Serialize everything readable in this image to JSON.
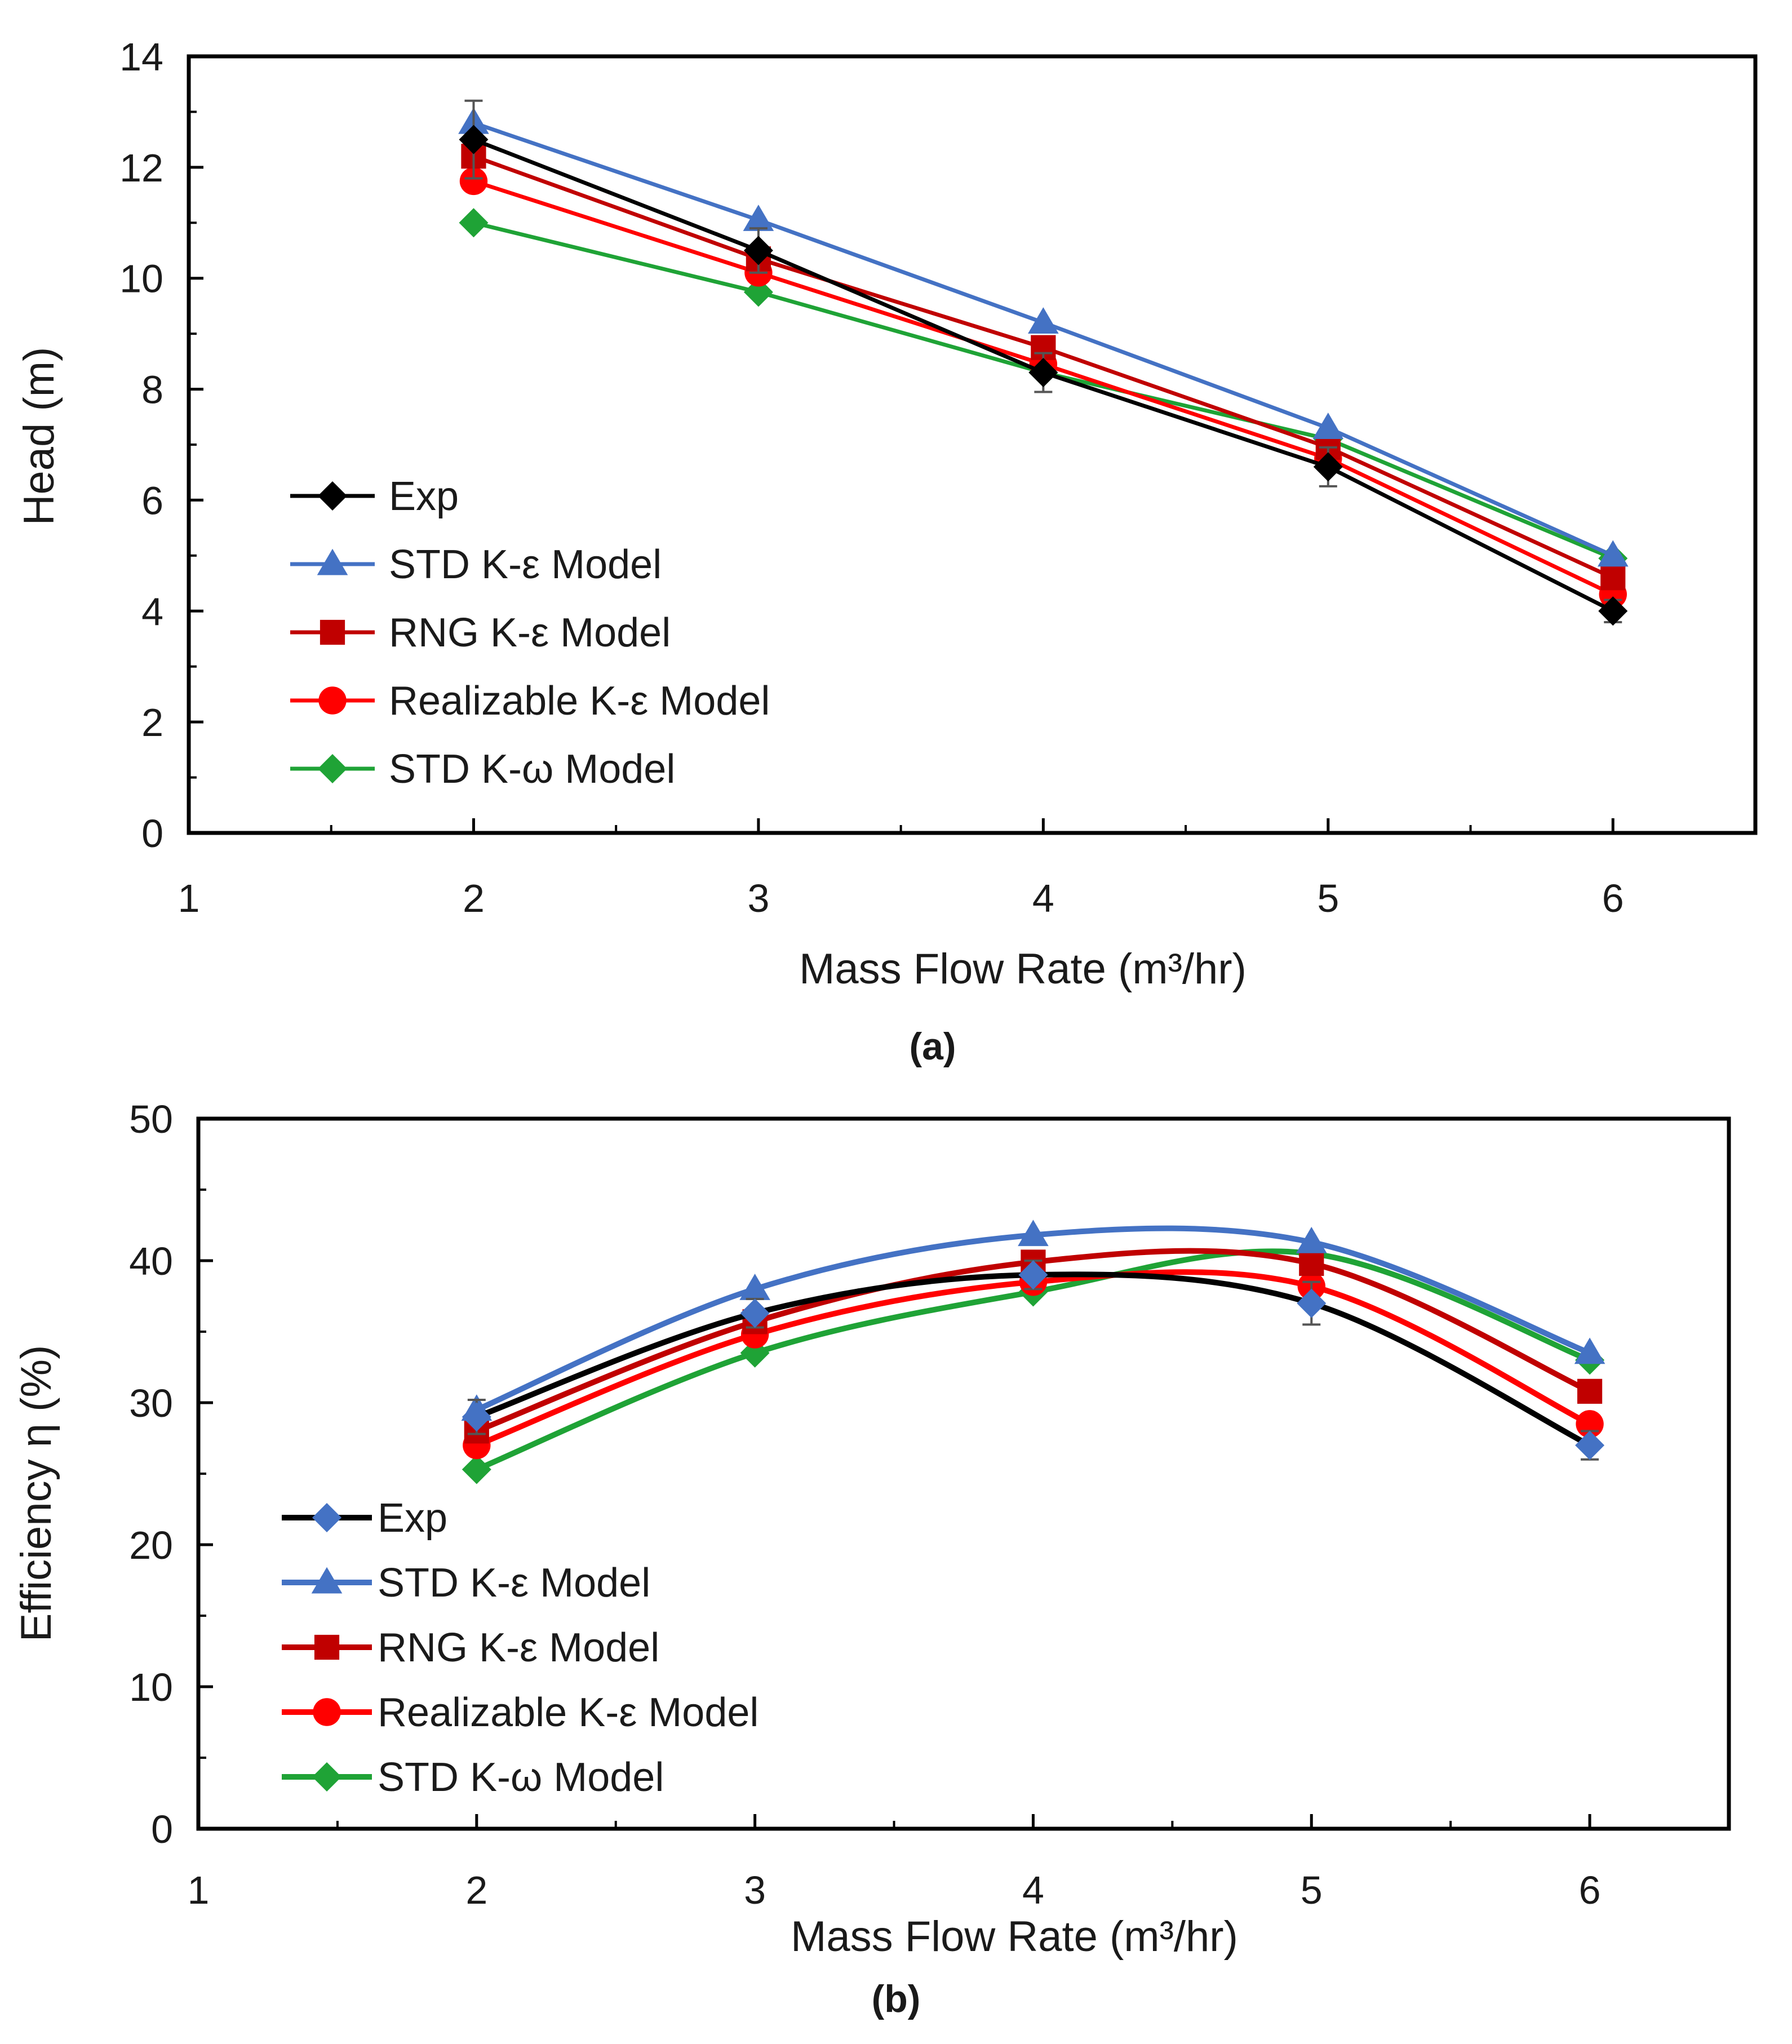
{
  "chart_data": [
    {
      "type": "line",
      "panel_label": "(a)",
      "xlabel": "Mass Flow Rate (m³/hr)",
      "ylabel": "Head (m)",
      "xlim": [
        1,
        6.5
      ],
      "ylim": [
        0,
        14
      ],
      "x_ticks": [
        "1",
        "2",
        "3",
        "4",
        "5",
        "6"
      ],
      "y_ticks": [
        "0",
        "2",
        "4",
        "6",
        "8",
        "10",
        "12",
        "14"
      ],
      "legend_position": "left",
      "x": [
        2,
        3,
        4,
        5,
        6
      ],
      "series": [
        {
          "name": "Exp",
          "color": "#000000",
          "marker": "diamond",
          "values": [
            12.5,
            10.5,
            8.3,
            6.6,
            4.0
          ],
          "error": [
            0.7,
            0.4,
            0.35,
            0.35,
            0.2
          ]
        },
        {
          "name": "STD K-ε Model",
          "color": "#4472C4",
          "marker": "triangle",
          "values": [
            12.8,
            11.05,
            9.2,
            7.3,
            5.0
          ]
        },
        {
          "name": "RNG K-ε Model",
          "color": "#C00000",
          "marker": "square",
          "values": [
            12.2,
            10.35,
            8.75,
            6.95,
            4.6
          ]
        },
        {
          "name": "Realizable K-ε Model",
          "color": "#FF0000",
          "marker": "circle",
          "values": [
            11.75,
            10.1,
            8.45,
            6.75,
            4.3
          ]
        },
        {
          "name": "STD K-ω Model",
          "color": "#1FA336",
          "marker": "diamond",
          "values": [
            11.0,
            9.75,
            8.3,
            7.1,
            4.95
          ]
        }
      ]
    },
    {
      "type": "line",
      "panel_label": "(b)",
      "xlabel": "Mass Flow Rate (m³/hr)",
      "ylabel": "Efficiency η (%)",
      "xlim": [
        1,
        6.5
      ],
      "ylim": [
        0,
        50
      ],
      "x_ticks": [
        "1",
        "2",
        "3",
        "4",
        "5",
        "6"
      ],
      "y_ticks": [
        "0",
        "10",
        "20",
        "30",
        "40",
        "50"
      ],
      "legend_position": "left",
      "x": [
        2,
        3,
        4,
        5,
        6
      ],
      "series": [
        {
          "name": "Exp",
          "color": "#000000",
          "marker": "diamond",
          "marker_color": "#4472C4",
          "values": [
            29.0,
            36.3,
            39.0,
            37.0,
            27.0
          ],
          "error": [
            1.2,
            1.0,
            1.0,
            1.5,
            1.0
          ]
        },
        {
          "name": "STD K-ε Model",
          "color": "#4472C4",
          "marker": "triangle",
          "values": [
            29.5,
            38.0,
            41.8,
            41.3,
            33.5
          ]
        },
        {
          "name": "RNG K-ε Model",
          "color": "#C00000",
          "marker": "square",
          "values": [
            28.0,
            35.7,
            39.9,
            39.8,
            30.8
          ]
        },
        {
          "name": "Realizable K-ε Model",
          "color": "#FF0000",
          "marker": "circle",
          "values": [
            27.0,
            34.8,
            38.5,
            38.2,
            28.5
          ]
        },
        {
          "name": "STD K-ω Model",
          "color": "#1FA336",
          "marker": "diamond",
          "values": [
            25.3,
            33.5,
            37.8,
            40.5,
            33.0
          ]
        }
      ]
    }
  ]
}
